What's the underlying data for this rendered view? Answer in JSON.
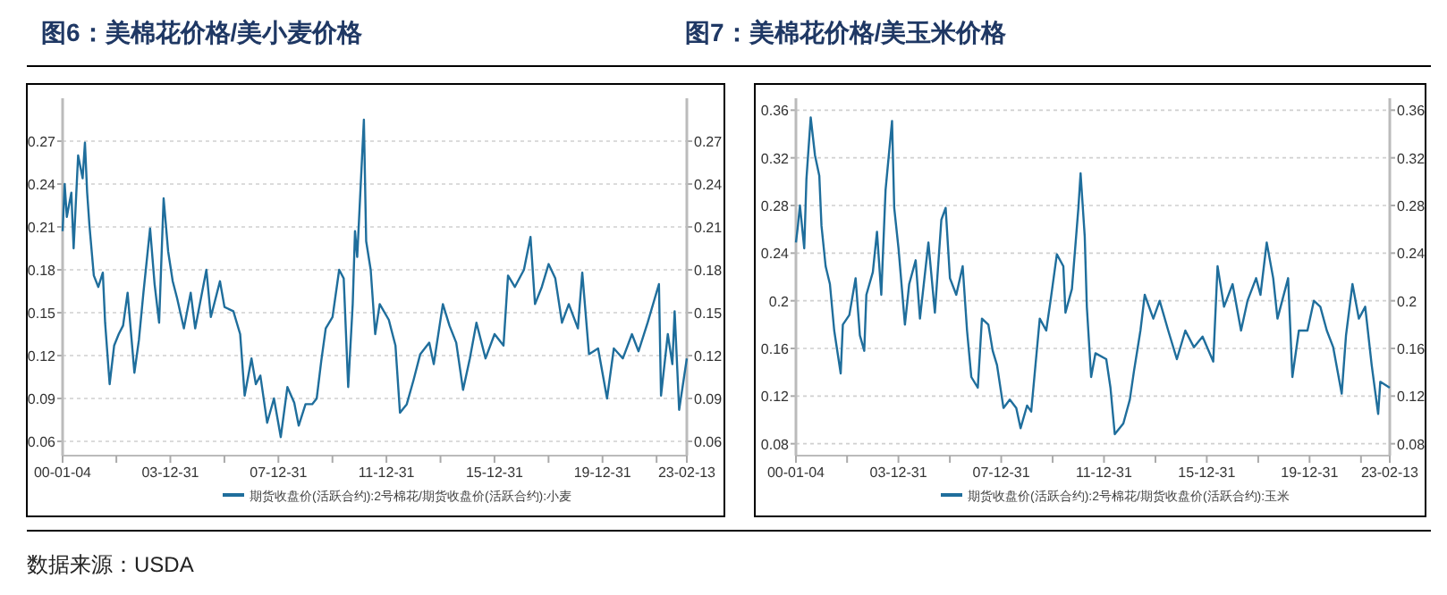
{
  "chart_data": [
    {
      "type": "line",
      "title": "图6：美棉花价格/美小麦价格",
      "annotations": [
        "数据来源：USDA"
      ],
      "grid": "y",
      "legend": "bottom",
      "x": [
        "2000-01-04",
        "2000-02",
        "2000-03",
        "2000-05",
        "2000-06",
        "2000-08",
        "2000-10",
        "2000-11",
        "2000-12",
        "2001-01",
        "2001-03",
        "2001-05",
        "2001-07",
        "2001-08",
        "2001-10",
        "2001-12",
        "2002-02",
        "2002-04",
        "2002-06",
        "2002-09",
        "2002-11",
        "2003-01",
        "2003-04",
        "2003-06",
        "2003-08",
        "2003-10",
        "2003-12",
        "2004-02",
        "2004-04",
        "2004-07",
        "2004-10",
        "2004-12",
        "2005-05",
        "2005-07",
        "2005-11",
        "2006-01",
        "2006-05",
        "2006-08",
        "2006-10",
        "2007-01",
        "2007-03",
        "2007-05",
        "2007-08",
        "2007-11",
        "2008-02",
        "2008-05",
        "2008-08",
        "2008-10",
        "2009-01",
        "2009-04",
        "2009-06",
        "2009-08",
        "2009-10",
        "2010-01",
        "2010-04",
        "2010-06",
        "2010-08",
        "2010-10",
        "2010-11",
        "2010-12",
        "2011-03",
        "2011-04",
        "2011-06",
        "2011-08",
        "2011-10",
        "2012-02",
        "2012-04",
        "2012-05",
        "2012-07",
        "2012-10",
        "2013-01",
        "2013-04",
        "2013-08",
        "2013-10",
        "2014-02",
        "2014-05",
        "2014-08",
        "2014-11",
        "2015-02",
        "2015-05",
        "2015-09",
        "2016-01",
        "2016-05",
        "2016-07",
        "2016-10",
        "2017-02",
        "2017-05",
        "2017-07",
        "2017-10",
        "2018-01",
        "2018-04",
        "2018-07",
        "2018-10",
        "2019-02",
        "2019-04",
        "2019-07",
        "2019-11",
        "2020-03",
        "2020-06",
        "2020-10",
        "2021-02",
        "2021-05",
        "2021-09",
        "2022-02",
        "2022-03",
        "2022-06",
        "2022-08",
        "2022-09",
        "2022-11",
        "2023-02-13"
      ],
      "series": [
        {
          "name": "期货收盘价(活跃合约):2号棉花/期货收盘价(活跃合约):小麦",
          "color": "#1f6e9c",
          "values": [
            0.207,
            0.24,
            0.217,
            0.234,
            0.195,
            0.26,
            0.244,
            0.269,
            0.234,
            0.211,
            0.176,
            0.168,
            0.178,
            0.143,
            0.1,
            0.127,
            0.135,
            0.141,
            0.164,
            0.108,
            0.131,
            0.164,
            0.209,
            0.17,
            0.143,
            0.23,
            0.193,
            0.172,
            0.16,
            0.139,
            0.164,
            0.139,
            0.18,
            0.147,
            0.172,
            0.154,
            0.151,
            0.135,
            0.092,
            0.118,
            0.1,
            0.106,
            0.073,
            0.09,
            0.063,
            0.098,
            0.087,
            0.071,
            0.086,
            0.086,
            0.09,
            0.116,
            0.139,
            0.147,
            0.18,
            0.174,
            0.098,
            0.156,
            0.207,
            0.189,
            0.285,
            0.2,
            0.18,
            0.135,
            0.156,
            0.145,
            0.133,
            0.127,
            0.08,
            0.086,
            0.103,
            0.121,
            0.129,
            0.114,
            0.156,
            0.141,
            0.129,
            0.096,
            0.118,
            0.143,
            0.118,
            0.135,
            0.127,
            0.176,
            0.168,
            0.18,
            0.203,
            0.156,
            0.168,
            0.184,
            0.174,
            0.143,
            0.156,
            0.139,
            0.178,
            0.121,
            0.125,
            0.09,
            0.125,
            0.118,
            0.135,
            0.123,
            0.143,
            0.17,
            0.092,
            0.135,
            0.114,
            0.151,
            0.082,
            0.118
          ]
        }
      ],
      "xlim": [
        "2000-01-04",
        "2023-02-13"
      ],
      "xticks": [
        {
          "value": "2000-01-04",
          "label": "00-01-04"
        },
        {
          "value": "2001-12-31",
          "label": null
        },
        {
          "value": "2003-12-31",
          "label": "03-12-31"
        },
        {
          "value": "2005-12-31",
          "label": null
        },
        {
          "value": "2007-12-31",
          "label": "07-12-31"
        },
        {
          "value": "2009-12-31",
          "label": null
        },
        {
          "value": "2011-12-31",
          "label": "11-12-31"
        },
        {
          "value": "2013-12-31",
          "label": null
        },
        {
          "value": "2015-12-31",
          "label": "15-12-31"
        },
        {
          "value": "2017-12-31",
          "label": null
        },
        {
          "value": "2019-12-31",
          "label": "19-12-31"
        },
        {
          "value": "2021-12-31",
          "label": null
        },
        {
          "value": "2023-02-13",
          "label": "23-02-13"
        }
      ],
      "ylim": [
        0.05,
        0.3
      ],
      "yticks": [
        0.06,
        0.09,
        0.12,
        0.15,
        0.18,
        0.21,
        0.24,
        0.27
      ],
      "y2lim": [
        0.05,
        0.3
      ],
      "y2ticks": [
        0.06,
        0.09,
        0.12,
        0.15,
        0.18,
        0.21,
        0.24,
        0.27
      ]
    },
    {
      "type": "line",
      "title": "图7：美棉花价格/美玉米价格",
      "grid": "y",
      "legend": "bottom",
      "x": [
        "2000-01-04",
        "2000-02",
        "2000-03",
        "2000-05",
        "2000-06",
        "2000-08",
        "2000-10",
        "2000-12",
        "2001-01",
        "2001-03",
        "2001-05",
        "2001-07",
        "2001-10",
        "2001-11",
        "2002-02",
        "2002-05",
        "2002-07",
        "2002-09",
        "2002-10",
        "2003-01",
        "2003-03",
        "2003-05",
        "2003-07",
        "2003-10",
        "2003-11",
        "2004-01",
        "2004-04",
        "2004-06",
        "2004-09",
        "2004-11",
        "2005-03",
        "2005-06",
        "2005-09",
        "2005-11",
        "2006-01",
        "2006-04",
        "2006-07",
        "2006-09",
        "2006-11",
        "2007-02",
        "2007-04",
        "2007-07",
        "2007-09",
        "2007-11",
        "2008-02",
        "2008-05",
        "2008-08",
        "2008-10",
        "2009-01",
        "2009-03",
        "2009-05",
        "2009-07",
        "2009-10",
        "2009-12",
        "2010-03",
        "2010-06",
        "2010-07",
        "2010-10",
        "2011-01",
        "2011-02",
        "2011-04",
        "2011-05",
        "2011-07",
        "2011-09",
        "2012-02",
        "2012-04",
        "2012-06",
        "2012-10",
        "2013-01",
        "2013-03",
        "2013-06",
        "2013-08",
        "2013-12",
        "2014-03",
        "2014-07",
        "2014-11",
        "2015-03",
        "2015-07",
        "2015-11",
        "2016-04",
        "2016-06",
        "2016-09",
        "2017-01",
        "2017-05",
        "2017-08",
        "2017-12",
        "2018-02",
        "2018-05",
        "2018-08",
        "2018-10",
        "2019-03",
        "2019-05",
        "2019-08",
        "2019-12",
        "2020-03",
        "2020-06",
        "2020-09",
        "2020-12",
        "2021-04",
        "2021-06",
        "2021-09",
        "2021-12",
        "2022-03",
        "2022-06",
        "2022-09",
        "2022-10",
        "2023-02-13"
      ],
      "series": [
        {
          "name": "期货收盘价(活跃合约):2号棉花/期货收盘价(活跃合约):玉米",
          "color": "#1f6e9c",
          "values": [
            0.249,
            0.263,
            0.28,
            0.244,
            0.302,
            0.354,
            0.322,
            0.305,
            0.263,
            0.229,
            0.214,
            0.175,
            0.139,
            0.18,
            0.188,
            0.219,
            0.171,
            0.158,
            0.205,
            0.224,
            0.258,
            0.205,
            0.293,
            0.351,
            0.278,
            0.244,
            0.18,
            0.214,
            0.234,
            0.185,
            0.249,
            0.19,
            0.268,
            0.278,
            0.219,
            0.205,
            0.229,
            0.175,
            0.136,
            0.127,
            0.185,
            0.18,
            0.158,
            0.146,
            0.11,
            0.117,
            0.11,
            0.093,
            0.112,
            0.107,
            0.146,
            0.185,
            0.175,
            0.2,
            0.239,
            0.229,
            0.19,
            0.21,
            0.278,
            0.307,
            0.254,
            0.195,
            0.136,
            0.156,
            0.151,
            0.127,
            0.088,
            0.097,
            0.117,
            0.141,
            0.175,
            0.205,
            0.185,
            0.2,
            0.175,
            0.151,
            0.175,
            0.161,
            0.17,
            0.149,
            0.229,
            0.195,
            0.214,
            0.175,
            0.2,
            0.219,
            0.205,
            0.249,
            0.219,
            0.185,
            0.219,
            0.136,
            0.175,
            0.175,
            0.2,
            0.195,
            0.175,
            0.161,
            0.122,
            0.171,
            0.214,
            0.185,
            0.195,
            0.146,
            0.105,
            0.132,
            0.127
          ]
        }
      ],
      "xlim": [
        "2000-01-04",
        "2023-02-13"
      ],
      "xticks": [
        {
          "value": "2000-01-04",
          "label": "00-01-04"
        },
        {
          "value": "2001-12-31",
          "label": null
        },
        {
          "value": "2003-12-31",
          "label": "03-12-31"
        },
        {
          "value": "2005-12-31",
          "label": null
        },
        {
          "value": "2007-12-31",
          "label": "07-12-31"
        },
        {
          "value": "2009-12-31",
          "label": null
        },
        {
          "value": "2011-12-31",
          "label": "11-12-31"
        },
        {
          "value": "2013-12-31",
          "label": null
        },
        {
          "value": "2015-12-31",
          "label": "15-12-31"
        },
        {
          "value": "2017-12-31",
          "label": null
        },
        {
          "value": "2019-12-31",
          "label": "19-12-31"
        },
        {
          "value": "2021-12-31",
          "label": null
        },
        {
          "value": "2023-02-13",
          "label": "23-02-13"
        }
      ],
      "ylim": [
        0.07,
        0.37
      ],
      "yticks": [
        0.08,
        0.12,
        0.16,
        0.2,
        0.24,
        0.28,
        0.32,
        0.36
      ],
      "y2lim": [
        0.07,
        0.37
      ],
      "y2ticks": [
        0.08,
        0.12,
        0.16,
        0.2,
        0.24,
        0.28,
        0.32,
        0.36
      ]
    }
  ]
}
